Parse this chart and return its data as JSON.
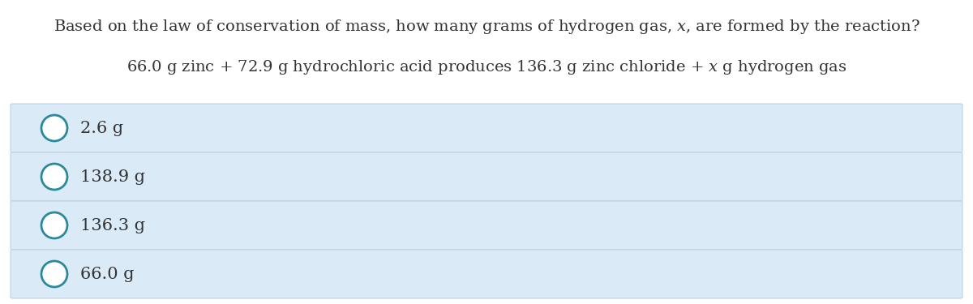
{
  "title": "Based on the law of conservation of mass, how many grams of hydrogen gas, $x$, are formed by the reaction?",
  "equation": "66.0 g zinc + 72.9 g hydrochloric acid produces 136.3 g zinc chloride + $x$ g hydrogen gas",
  "choices": [
    "2.6 g",
    "138.9 g",
    "136.3 g",
    "66.0 g"
  ],
  "bg_color": "#ffffff",
  "choice_bg_color": "#daeaf7",
  "choice_border_color": "#b8d4e8",
  "text_color": "#333333",
  "circle_edge_color": "#2a8a9a",
  "title_fontsize": 14,
  "eq_fontsize": 14,
  "choice_fontsize": 15,
  "fig_width": 12.0,
  "fig_height": 3.75,
  "dpi": 100
}
